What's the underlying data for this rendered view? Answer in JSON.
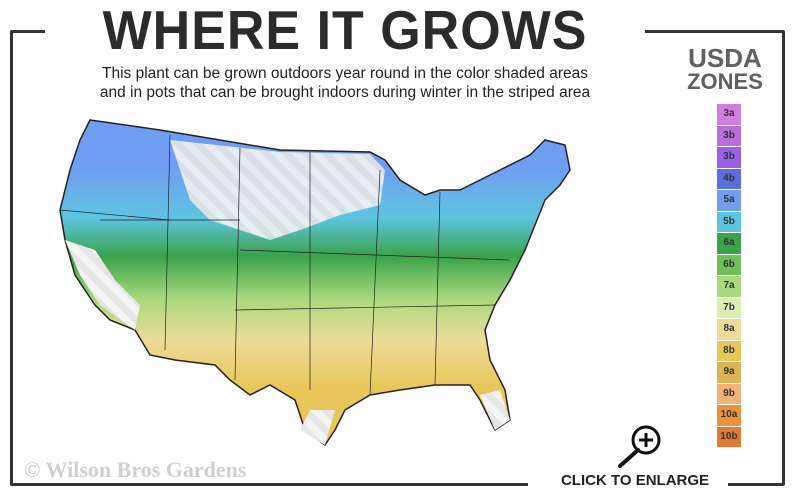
{
  "title": "WHERE IT GROWS",
  "subtitle_line1": "This plant can be grown outdoors year round in the color shaded areas",
  "subtitle_line2": "and in pots that can be brought indoors during winter in the striped area",
  "legend": {
    "title_line1": "USDA",
    "title_line2": "ZONES",
    "zones": [
      {
        "label": "3a",
        "color": "#d07ee0"
      },
      {
        "label": "3b",
        "color": "#b86fdc"
      },
      {
        "label": "3b",
        "color": "#9a5ee8"
      },
      {
        "label": "4b",
        "color": "#5a6ee0"
      },
      {
        "label": "5a",
        "color": "#6f9ef2"
      },
      {
        "label": "5b",
        "color": "#5fc4e0"
      },
      {
        "label": "6a",
        "color": "#3aa34a"
      },
      {
        "label": "6b",
        "color": "#6cc05a"
      },
      {
        "label": "7a",
        "color": "#a8d97e"
      },
      {
        "label": "7b",
        "color": "#deedb4"
      },
      {
        "label": "8a",
        "color": "#ecdc98"
      },
      {
        "label": "8b",
        "color": "#e8c65a"
      },
      {
        "label": "9a",
        "color": "#dcb458"
      },
      {
        "label": "9b",
        "color": "#f2b07a"
      },
      {
        "label": "10a",
        "color": "#e8923a"
      },
      {
        "label": "10b",
        "color": "#e07a30"
      }
    ]
  },
  "copyright": "© Wilson Bros Gardens",
  "enlarge_label": "CLICK TO ENLARGE"
}
